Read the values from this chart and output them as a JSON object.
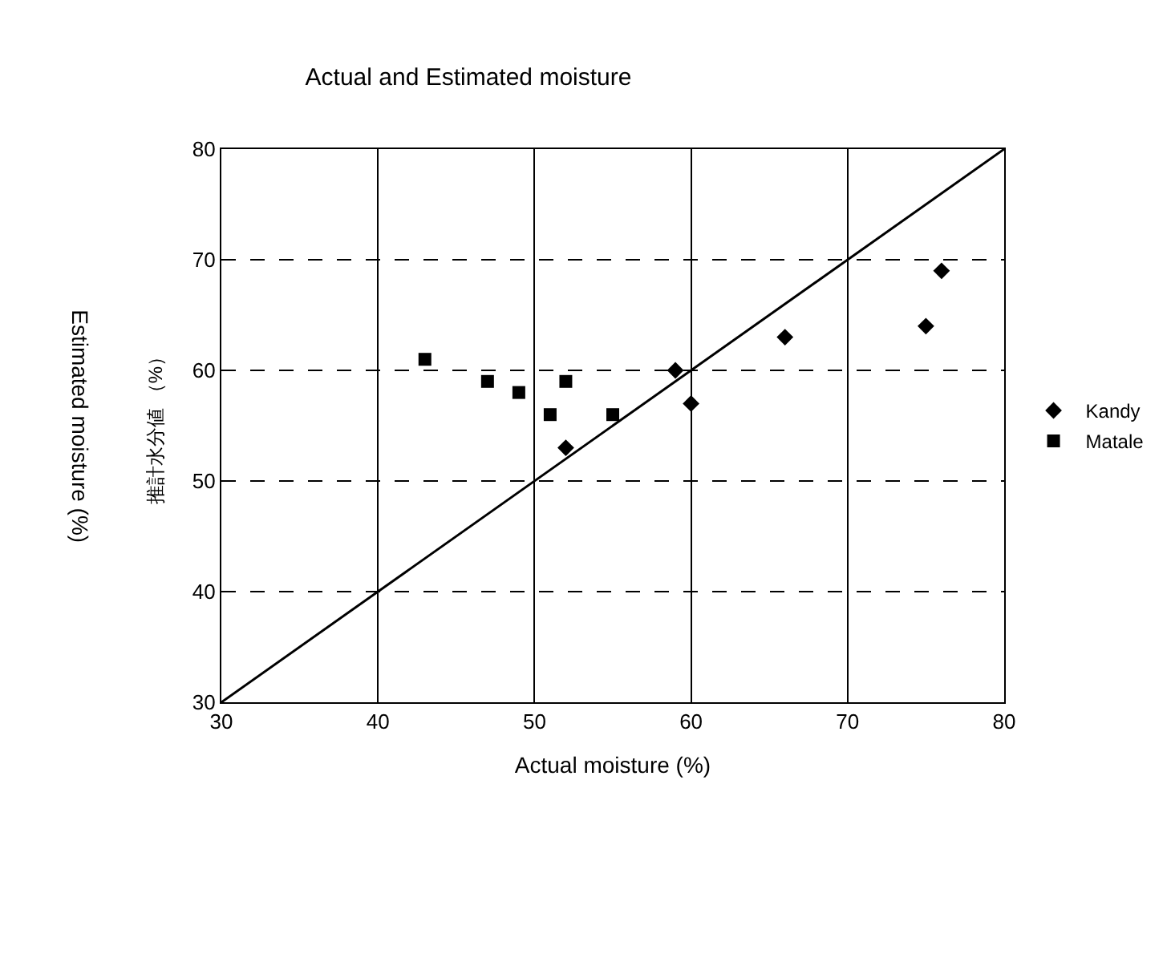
{
  "chart_data": {
    "type": "scatter",
    "title": "Actual and Estimated moisture",
    "xlabel": "Actual moisture (%)",
    "ylabel": "推計水分値 （%）",
    "annotations": [
      "Estimated moisture (%)"
    ],
    "xlim": [
      30,
      80
    ],
    "ylim": [
      30,
      80
    ],
    "xticks": [
      30,
      40,
      50,
      60,
      70,
      80
    ],
    "yticks": [
      30,
      40,
      50,
      60,
      70,
      80
    ],
    "grid": true,
    "legend": "right",
    "series": [
      {
        "name": "Kandy",
        "color": "#000000",
        "marker": "diamond",
        "x": [
          52,
          59,
          60,
          66,
          75,
          76
        ],
        "values": [
          53,
          60,
          57,
          63,
          64,
          69
        ]
      },
      {
        "name": "Matale",
        "color": "#000000",
        "marker": "square",
        "x": [
          43,
          47,
          49,
          51,
          52,
          55
        ],
        "values": [
          61,
          59,
          58,
          56,
          59,
          56
        ]
      },
      {
        "type": "line",
        "color": "#000000",
        "line_style": "solid",
        "x": [
          30,
          80
        ],
        "values": [
          30,
          80
        ]
      }
    ]
  }
}
